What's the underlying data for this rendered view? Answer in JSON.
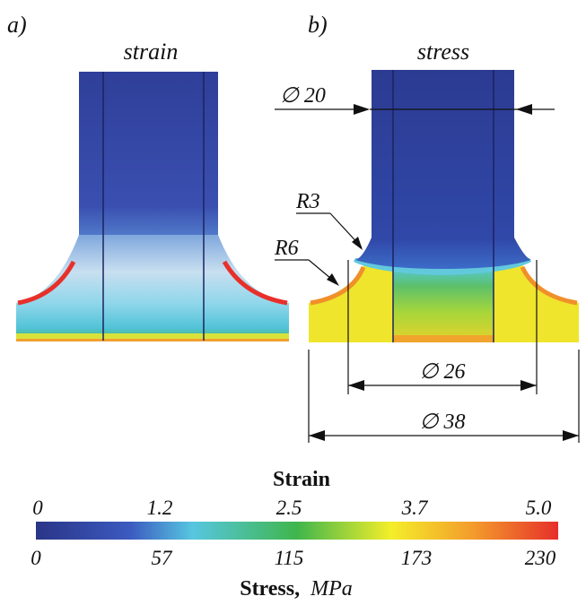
{
  "panels": {
    "a": {
      "letter": "a)",
      "title": "strain"
    },
    "b": {
      "letter": "b)",
      "title": "stress"
    }
  },
  "dimensions": {
    "d20": "∅ 20",
    "d26": "∅ 26",
    "d38": "∅ 38",
    "r3": "R3",
    "r6": "R6"
  },
  "colorbar": {
    "strain_title": "Strain",
    "strain_ticks": [
      "0",
      "1.2",
      "2.5",
      "3.7",
      "5.0"
    ],
    "stress_ticks": [
      "0",
      "57",
      "115",
      "173",
      "230"
    ],
    "stress_title_bold": "Stress,",
    "stress_title_unit": "MPa",
    "colors": [
      "#2b3a8f",
      "#3d5fc4",
      "#55c8e0",
      "#43b84a",
      "#f4ee2a",
      "#f59a2a",
      "#e8302a"
    ]
  }
}
